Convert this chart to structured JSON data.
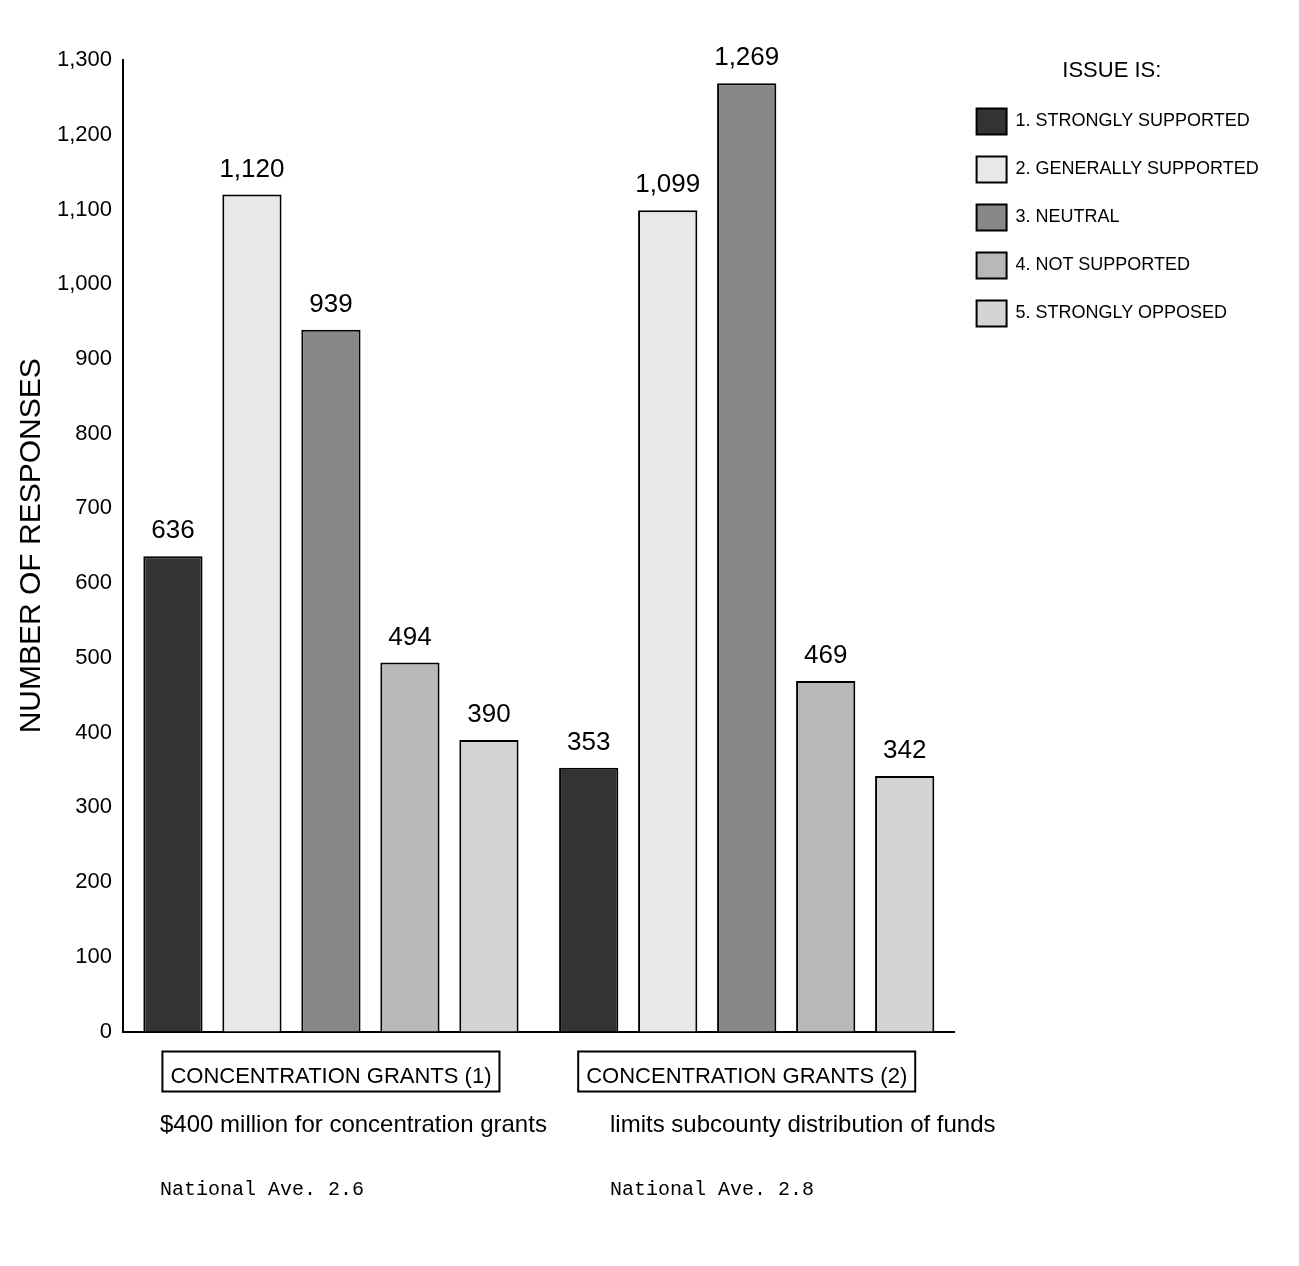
{
  "chart_data": {
    "type": "bar",
    "ylabel": "NUMBER OF RESPONSES",
    "legend_title": "ISSUE IS:",
    "legend": "top right",
    "grid": false,
    "categories": [
      "CONCENTRATION GRANTS (1)",
      "CONCENTRATION GRANTS (2)"
    ],
    "ylim": [
      0,
      1300
    ],
    "yticks": [
      0,
      100,
      200,
      300,
      400,
      500,
      600,
      700,
      800,
      900,
      {
        "value": 1000,
        "label": "1,000"
      },
      {
        "value": 1100,
        "label": "1,100"
      },
      {
        "value": 1200,
        "label": "1,200"
      },
      {
        "value": 1300,
        "label": "1,300"
      }
    ],
    "series": [
      {
        "name": "1. STRONGLY SUPPORTED",
        "color": "#333333",
        "values": [
          636,
          353
        ],
        "value_labels": [
          "636",
          "353"
        ]
      },
      {
        "name": "2. GENERALLY SUPPORTED",
        "color": "#e8e8e8",
        "values": [
          1120,
          1099
        ],
        "value_labels": [
          "1,120",
          "1,099"
        ]
      },
      {
        "name": "3. NEUTRAL",
        "color": "#888888",
        "values": [
          939,
          1269
        ],
        "value_labels": [
          "939",
          "1,269"
        ]
      },
      {
        "name": "4. NOT SUPPORTED",
        "color": "#b8b8b8",
        "values": [
          494,
          469
        ],
        "value_labels": [
          "494",
          "469"
        ]
      },
      {
        "name": "5. STRONGLY OPPOSED",
        "color": "#d4d4d4",
        "values": [
          390,
          342
        ],
        "value_labels": [
          "390",
          "342"
        ]
      }
    ],
    "annotations": [
      "$400 million for concentration grants",
      "limits subcounty distribution of funds",
      "National Ave.  2.6",
      "National Ave.  2.8"
    ]
  }
}
